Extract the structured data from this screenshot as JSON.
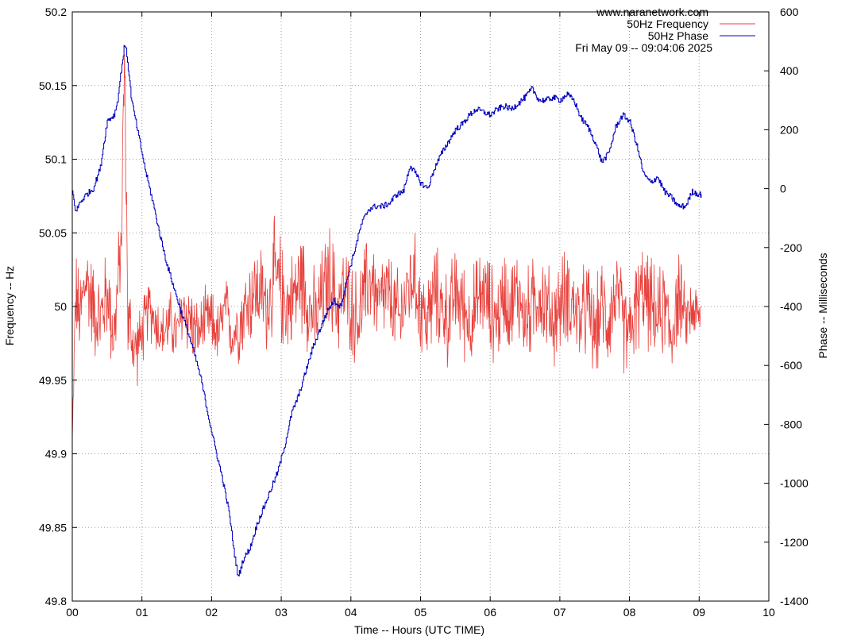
{
  "chart_data": {
    "type": "line",
    "title_lines": [
      "www.naranetwork.com"
    ],
    "timestamp": "Fri May 09 -- 09:04:06 2025",
    "xlabel": "Time -- Hours (UTC TIME)",
    "ylabel": "Frequency -- Hz",
    "y2label": "Phase -- Milliseconds",
    "xlim": [
      0,
      10
    ],
    "ylim": [
      49.8,
      50.2
    ],
    "y2lim": [
      -1400,
      600
    ],
    "grid": true,
    "legend_position": "top-right",
    "x_ticks": [
      0,
      1,
      2,
      3,
      4,
      5,
      6,
      7,
      8,
      9,
      10
    ],
    "x_tick_labels": [
      "00",
      "01",
      "02",
      "03",
      "04",
      "05",
      "06",
      "07",
      "08",
      "09",
      "10"
    ],
    "y_ticks": [
      49.8,
      49.85,
      49.9,
      49.95,
      50,
      50.05,
      50.1,
      50.15,
      50.2
    ],
    "y_tick_labels": [
      "49.8",
      "49.85",
      "49.9",
      "49.95",
      "50",
      "50.05",
      "50.1",
      "50.15",
      "50.2"
    ],
    "y2_ticks": [
      -1400,
      -1200,
      -1000,
      -800,
      -600,
      -400,
      -200,
      0,
      200,
      400,
      600
    ],
    "y2_tick_labels": [
      "-1400",
      "-1200",
      "-1000",
      "-800",
      "-600",
      "-400",
      "-200",
      "0",
      "200",
      "400",
      "600"
    ],
    "series": [
      {
        "name": "50Hz Frequency",
        "axis": "y",
        "color": "#e8413c",
        "x": [
          0.0,
          0.05,
          0.1,
          0.2,
          0.3,
          0.4,
          0.5,
          0.6,
          0.7,
          0.75,
          0.8,
          0.9,
          1.0,
          1.1,
          1.2,
          1.3,
          1.4,
          1.5,
          1.6,
          1.7,
          1.8,
          1.9,
          2.0,
          2.1,
          2.2,
          2.3,
          2.4,
          2.5,
          2.6,
          2.7,
          2.8,
          2.9,
          3.0,
          3.1,
          3.2,
          3.3,
          3.4,
          3.5,
          3.6,
          3.7,
          3.8,
          3.9,
          4.0,
          4.1,
          4.2,
          4.3,
          4.4,
          4.5,
          4.6,
          4.7,
          4.8,
          4.9,
          5.0,
          5.1,
          5.2,
          5.3,
          5.4,
          5.5,
          5.6,
          5.7,
          5.8,
          5.9,
          6.0,
          6.1,
          6.2,
          6.3,
          6.4,
          6.5,
          6.6,
          6.7,
          6.8,
          6.9,
          7.0,
          7.1,
          7.2,
          7.3,
          7.4,
          7.5,
          7.6,
          7.7,
          7.8,
          7.9,
          8.0,
          8.1,
          8.2,
          8.3,
          8.4,
          8.5,
          8.6,
          8.7,
          8.8,
          8.9,
          9.0,
          9.03
        ],
        "values": [
          49.91,
          50.01,
          49.99,
          50.02,
          50.0,
          49.99,
          50.01,
          49.98,
          50.04,
          50.17,
          49.99,
          49.97,
          49.98,
          50.0,
          49.99,
          49.98,
          49.99,
          49.98,
          50.0,
          49.99,
          49.98,
          49.99,
          49.99,
          49.98,
          50.0,
          49.98,
          49.99,
          50.0,
          50.01,
          50.01,
          50.0,
          50.02,
          50.01,
          50.0,
          50.01,
          50.02,
          50.0,
          49.99,
          50.01,
          50.02,
          50.0,
          50.01,
          50.0,
          49.99,
          50.01,
          50.02,
          50.0,
          50.01,
          50.0,
          49.99,
          50.01,
          50.02,
          50.0,
          49.99,
          50.01,
          50.0,
          49.99,
          50.01,
          50.0,
          49.99,
          50.0,
          50.01,
          50.0,
          49.99,
          50.01,
          50.0,
          50.01,
          49.99,
          50.0,
          50.01,
          50.0,
          49.99,
          50.0,
          50.01,
          50.0,
          49.99,
          50.0,
          49.98,
          50.0,
          49.99,
          50.01,
          49.99,
          49.98,
          50.0,
          50.01,
          50.0,
          49.99,
          50.0,
          49.98,
          50.01,
          49.99,
          50.0,
          49.99,
          50.0
        ],
        "spread": [
          0.0,
          0.03,
          0.03,
          0.03,
          0.03,
          0.03,
          0.03,
          0.03,
          0.03,
          0.03,
          0.03,
          0.025,
          0.02,
          0.02,
          0.02,
          0.02,
          0.02,
          0.02,
          0.025,
          0.025,
          0.02,
          0.02,
          0.02,
          0.02,
          0.02,
          0.02,
          0.025,
          0.03,
          0.03,
          0.03,
          0.03,
          0.035,
          0.035,
          0.03,
          0.03,
          0.035,
          0.03,
          0.03,
          0.03,
          0.035,
          0.03,
          0.03,
          0.03,
          0.03,
          0.03,
          0.03,
          0.03,
          0.03,
          0.03,
          0.03,
          0.03,
          0.03,
          0.03,
          0.03,
          0.03,
          0.03,
          0.03,
          0.03,
          0.03,
          0.03,
          0.03,
          0.03,
          0.03,
          0.03,
          0.03,
          0.03,
          0.03,
          0.03,
          0.03,
          0.03,
          0.03,
          0.03,
          0.03,
          0.03,
          0.03,
          0.03,
          0.03,
          0.03,
          0.03,
          0.03,
          0.03,
          0.03,
          0.03,
          0.03,
          0.03,
          0.03,
          0.03,
          0.03,
          0.03,
          0.03,
          0.02,
          0.02,
          0.02,
          0.0
        ]
      },
      {
        "name": "50Hz Phase",
        "axis": "y2",
        "color": "#0000c0",
        "x": [
          0.0,
          0.05,
          0.1,
          0.2,
          0.3,
          0.4,
          0.5,
          0.6,
          0.65,
          0.7,
          0.75,
          0.78,
          0.85,
          0.95,
          1.05,
          1.15,
          1.25,
          1.35,
          1.45,
          1.55,
          1.65,
          1.75,
          1.85,
          1.95,
          2.05,
          2.15,
          2.25,
          2.32,
          2.38,
          2.45,
          2.55,
          2.65,
          2.75,
          2.85,
          2.95,
          3.05,
          3.15,
          3.25,
          3.35,
          3.45,
          3.55,
          3.65,
          3.75,
          3.85,
          3.95,
          4.05,
          4.15,
          4.25,
          4.35,
          4.45,
          4.55,
          4.65,
          4.75,
          4.85,
          4.95,
          5.0,
          5.1,
          5.2,
          5.3,
          5.4,
          5.5,
          5.6,
          5.7,
          5.8,
          5.9,
          6.0,
          6.1,
          6.2,
          6.3,
          6.4,
          6.5,
          6.6,
          6.7,
          6.8,
          6.9,
          7.0,
          7.1,
          7.2,
          7.3,
          7.4,
          7.5,
          7.6,
          7.7,
          7.8,
          7.9,
          8.0,
          8.1,
          8.2,
          8.3,
          8.4,
          8.5,
          8.6,
          8.7,
          8.8,
          8.9,
          9.0,
          9.03
        ],
        "values": [
          -10,
          -80,
          -50,
          -20,
          0,
          70,
          230,
          250,
          300,
          400,
          490,
          460,
          300,
          180,
          60,
          -40,
          -150,
          -250,
          -330,
          -410,
          -480,
          -560,
          -650,
          -770,
          -880,
          -980,
          -1100,
          -1230,
          -1320,
          -1260,
          -1220,
          -1140,
          -1080,
          -1020,
          -960,
          -870,
          -760,
          -700,
          -620,
          -540,
          -480,
          -420,
          -380,
          -400,
          -300,
          -210,
          -120,
          -70,
          -60,
          -60,
          -50,
          -20,
          -10,
          80,
          40,
          20,
          0,
          70,
          120,
          160,
          200,
          220,
          250,
          270,
          260,
          250,
          270,
          280,
          270,
          290,
          310,
          340,
          300,
          300,
          310,
          300,
          320,
          300,
          240,
          210,
          160,
          90,
          120,
          210,
          250,
          230,
          150,
          50,
          20,
          40,
          -10,
          -30,
          -60,
          -60,
          -10,
          -20,
          -20
        ]
      }
    ]
  }
}
